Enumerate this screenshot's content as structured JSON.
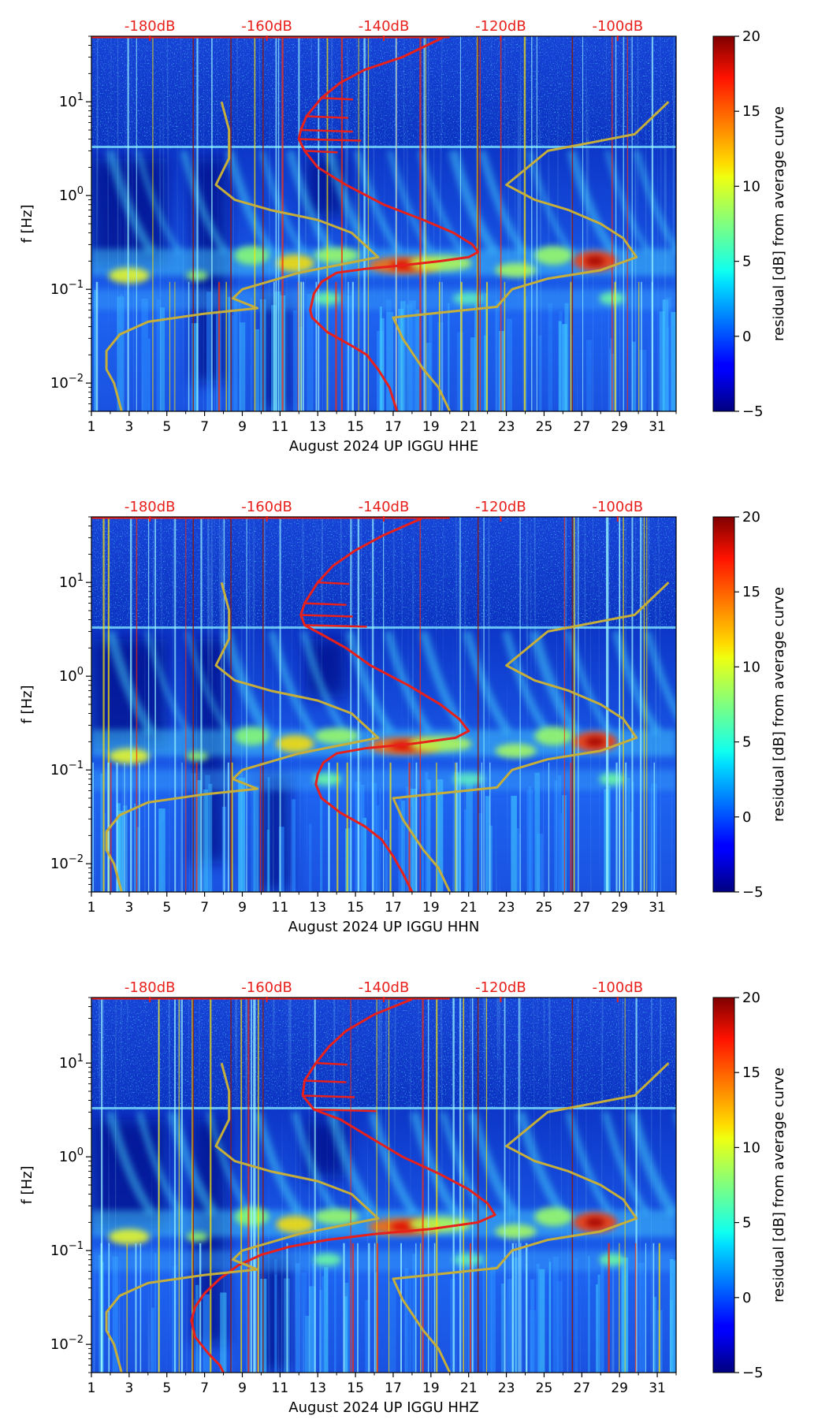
{
  "chart_data": [
    {
      "type": "heatmap",
      "xlabel": "August 2024 UP IGGU  HHE",
      "ylabel": "f [Hz]",
      "x_ticks": [
        "1",
        "3",
        "5",
        "7",
        "9",
        "11",
        "13",
        "15",
        "17",
        "19",
        "21",
        "23",
        "25",
        "27",
        "29",
        "31"
      ],
      "xlim": [
        1,
        32
      ],
      "y_ticks": [
        {
          "value": 10,
          "label": "10^1"
        },
        {
          "value": 1,
          "label": "10^0"
        },
        {
          "value": 0.1,
          "label": "10^-1"
        },
        {
          "value": 0.01,
          "label": "10^-2"
        }
      ],
      "ylim": [
        0.005,
        50
      ],
      "y_scale": "log",
      "top_ticks": [
        "-180dB",
        "-160dB",
        "-140dB",
        "-120dB",
        "-100dB"
      ],
      "top_axis_db_at_day": [
        [
          4.1,
          -180
        ],
        [
          10.3,
          -160
        ],
        [
          16.5,
          -140
        ],
        [
          22.7,
          -120
        ],
        [
          28.9,
          -100
        ]
      ],
      "colorbar": {
        "label": "residual [dB] from average curve",
        "min": -5,
        "max": 20,
        "ticks": [
          "20",
          "15",
          "10",
          "5",
          "0",
          "−5"
        ]
      },
      "series": [
        {
          "color": "#e8201c",
          "points": [
            [
              19.6,
              48
            ],
            [
              17.5,
              30
            ],
            [
              15.5,
              22
            ],
            [
              14.2,
              16
            ],
            [
              13.2,
              11
            ],
            [
              12.4,
              7
            ],
            [
              12.1,
              5
            ],
            [
              12.0,
              4
            ],
            [
              12.3,
              3
            ],
            [
              13.0,
              2
            ],
            [
              14.5,
              1.3
            ],
            [
              16.5,
              0.8
            ],
            [
              18.6,
              0.55
            ],
            [
              20.2,
              0.4
            ],
            [
              21.2,
              0.3
            ],
            [
              21.5,
              0.25
            ],
            [
              21.0,
              0.22
            ],
            [
              19.5,
              0.2
            ],
            [
              17.5,
              0.18
            ],
            [
              15.5,
              0.165
            ],
            [
              14.0,
              0.15
            ],
            [
              13.2,
              0.12
            ],
            [
              12.8,
              0.09
            ],
            [
              12.6,
              0.06
            ],
            [
              12.7,
              0.05
            ],
            [
              13.5,
              0.035
            ],
            [
              14.8,
              0.025
            ],
            [
              15.6,
              0.02
            ],
            [
              16.2,
              0.014
            ],
            [
              16.8,
              0.009
            ],
            [
              17.2,
              0.005
            ]
          ]
        },
        {
          "color": "#c6ae3a",
          "points": [
            [
              7.9,
              10
            ],
            [
              8.3,
              5
            ],
            [
              8.3,
              2.5
            ],
            [
              7.6,
              1.3
            ],
            [
              8.6,
              0.9
            ],
            [
              10.5,
              0.7
            ],
            [
              13.0,
              0.55
            ],
            [
              14.8,
              0.4
            ],
            [
              16.2,
              0.22
            ],
            [
              12.0,
              0.15
            ],
            [
              9.0,
              0.1
            ],
            [
              8.5,
              0.08
            ],
            [
              9.8,
              0.063
            ],
            [
              7.0,
              0.055
            ],
            [
              4.0,
              0.045
            ],
            [
              2.5,
              0.033
            ],
            [
              1.8,
              0.022
            ],
            [
              1.8,
              0.014
            ],
            [
              2.2,
              0.01
            ],
            [
              2.6,
              0.005
            ]
          ]
        },
        {
          "color": "#c6ae3a",
          "points": [
            [
              31.6,
              10
            ],
            [
              29.8,
              4.5
            ],
            [
              25.2,
              3
            ],
            [
              23.0,
              1.3
            ],
            [
              24.5,
              0.9
            ],
            [
              26.3,
              0.7
            ],
            [
              28.0,
              0.5
            ],
            [
              29.2,
              0.35
            ],
            [
              29.9,
              0.22
            ],
            [
              28.0,
              0.16
            ],
            [
              25.2,
              0.13
            ],
            [
              23.3,
              0.1
            ],
            [
              22.5,
              0.065
            ],
            [
              17.0,
              0.05
            ],
            [
              17.5,
              0.03
            ],
            [
              18.6,
              0.014
            ],
            [
              19.4,
              0.009
            ],
            [
              20.0,
              0.005
            ]
          ]
        }
      ]
    },
    {
      "type": "heatmap",
      "xlabel": "August 2024 UP IGGU  HHN",
      "ylabel": "f [Hz]",
      "x_ticks": [
        "1",
        "3",
        "5",
        "7",
        "9",
        "11",
        "13",
        "15",
        "17",
        "19",
        "21",
        "23",
        "25",
        "27",
        "29",
        "31"
      ],
      "xlim": [
        1,
        32
      ],
      "y_ticks": [
        {
          "value": 10,
          "label": "10^1"
        },
        {
          "value": 1,
          "label": "10^0"
        },
        {
          "value": 0.1,
          "label": "10^-1"
        },
        {
          "value": 0.01,
          "label": "10^-2"
        }
      ],
      "ylim": [
        0.005,
        50
      ],
      "y_scale": "log",
      "top_ticks": [
        "-180dB",
        "-160dB",
        "-140dB",
        "-120dB",
        "-100dB"
      ],
      "top_axis_db_at_day": [
        [
          4.1,
          -180
        ],
        [
          10.3,
          -160
        ],
        [
          16.5,
          -140
        ],
        [
          22.7,
          -120
        ],
        [
          28.9,
          -100
        ]
      ],
      "colorbar": {
        "label": "residual [dB] from average curve",
        "min": -5,
        "max": 20,
        "ticks": [
          "20",
          "15",
          "10",
          "5",
          "0",
          "−5"
        ]
      },
      "series": [
        {
          "color": "#e8201c",
          "points": [
            [
              18.5,
              48
            ],
            [
              16.5,
              32
            ],
            [
              15.0,
              22
            ],
            [
              13.8,
              15
            ],
            [
              13.0,
              10
            ],
            [
              12.3,
              6
            ],
            [
              12.1,
              4.5
            ],
            [
              12.3,
              3.5
            ],
            [
              13.2,
              2.8
            ],
            [
              14.5,
              2
            ],
            [
              15.8,
              1.3
            ],
            [
              17.8,
              0.8
            ],
            [
              19.5,
              0.5
            ],
            [
              20.5,
              0.35
            ],
            [
              21.0,
              0.26
            ],
            [
              20.3,
              0.22
            ],
            [
              18.0,
              0.19
            ],
            [
              15.5,
              0.17
            ],
            [
              14.0,
              0.15
            ],
            [
              13.3,
              0.12
            ],
            [
              13.0,
              0.09
            ],
            [
              12.9,
              0.07
            ],
            [
              13.2,
              0.05
            ],
            [
              14.2,
              0.035
            ],
            [
              15.5,
              0.025
            ],
            [
              16.4,
              0.018
            ],
            [
              17.0,
              0.012
            ],
            [
              17.5,
              0.008
            ],
            [
              18.0,
              0.005
            ]
          ]
        },
        {
          "color": "#c6ae3a",
          "points": [
            [
              7.9,
              10
            ],
            [
              8.3,
              5
            ],
            [
              8.3,
              2.5
            ],
            [
              7.6,
              1.3
            ],
            [
              8.6,
              0.9
            ],
            [
              10.5,
              0.7
            ],
            [
              13.0,
              0.55
            ],
            [
              14.8,
              0.4
            ],
            [
              16.2,
              0.22
            ],
            [
              12.0,
              0.15
            ],
            [
              9.0,
              0.1
            ],
            [
              8.5,
              0.08
            ],
            [
              9.8,
              0.063
            ],
            [
              7.0,
              0.055
            ],
            [
              4.0,
              0.045
            ],
            [
              2.5,
              0.033
            ],
            [
              1.8,
              0.022
            ],
            [
              1.8,
              0.014
            ],
            [
              2.2,
              0.01
            ],
            [
              2.6,
              0.005
            ]
          ]
        },
        {
          "color": "#c6ae3a",
          "points": [
            [
              31.6,
              10
            ],
            [
              29.8,
              4.5
            ],
            [
              25.2,
              3
            ],
            [
              23.0,
              1.3
            ],
            [
              24.5,
              0.9
            ],
            [
              26.3,
              0.7
            ],
            [
              28.0,
              0.5
            ],
            [
              29.2,
              0.35
            ],
            [
              29.9,
              0.22
            ],
            [
              28.0,
              0.16
            ],
            [
              25.2,
              0.13
            ],
            [
              23.3,
              0.1
            ],
            [
              22.5,
              0.065
            ],
            [
              17.0,
              0.05
            ],
            [
              17.5,
              0.03
            ],
            [
              18.6,
              0.014
            ],
            [
              19.4,
              0.009
            ],
            [
              20.0,
              0.005
            ]
          ]
        }
      ]
    },
    {
      "type": "heatmap",
      "xlabel": "August 2024 UP IGGU  HHZ",
      "ylabel": "f [Hz]",
      "x_ticks": [
        "1",
        "3",
        "5",
        "7",
        "9",
        "11",
        "13",
        "15",
        "17",
        "19",
        "21",
        "23",
        "25",
        "27",
        "29",
        "31"
      ],
      "xlim": [
        1,
        32
      ],
      "y_ticks": [
        {
          "value": 10,
          "label": "10^1"
        },
        {
          "value": 1,
          "label": "10^0"
        },
        {
          "value": 0.1,
          "label": "10^-1"
        },
        {
          "value": 0.01,
          "label": "10^-2"
        }
      ],
      "ylim": [
        0.005,
        50
      ],
      "y_scale": "log",
      "top_ticks": [
        "-180dB",
        "-160dB",
        "-140dB",
        "-120dB",
        "-100dB"
      ],
      "top_axis_db_at_day": [
        [
          4.1,
          -180
        ],
        [
          10.3,
          -160
        ],
        [
          16.5,
          -140
        ],
        [
          22.7,
          -120
        ],
        [
          28.9,
          -100
        ]
      ],
      "colorbar": {
        "label": "residual [dB] from average curve",
        "min": -5,
        "max": 20,
        "ticks": [
          "20",
          "15",
          "10",
          "5",
          "0",
          "−5"
        ]
      },
      "series": [
        {
          "color": "#e8201c",
          "points": [
            [
              18.0,
              48
            ],
            [
              16.0,
              33
            ],
            [
              14.5,
              22
            ],
            [
              13.6,
              15
            ],
            [
              12.9,
              10
            ],
            [
              12.3,
              6.5
            ],
            [
              12.2,
              4.5
            ],
            [
              12.8,
              3.2
            ],
            [
              14.2,
              2.5
            ],
            [
              15.8,
              1.6
            ],
            [
              17.5,
              1.0
            ],
            [
              19.5,
              0.65
            ],
            [
              21.0,
              0.45
            ],
            [
              22.0,
              0.32
            ],
            [
              22.4,
              0.24
            ],
            [
              21.5,
              0.2
            ],
            [
              19.0,
              0.17
            ],
            [
              16.0,
              0.15
            ],
            [
              13.5,
              0.13
            ],
            [
              11.5,
              0.11
            ],
            [
              10.0,
              0.09
            ],
            [
              8.8,
              0.07
            ],
            [
              7.8,
              0.05
            ],
            [
              7.0,
              0.035
            ],
            [
              6.5,
              0.025
            ],
            [
              6.3,
              0.018
            ],
            [
              6.5,
              0.012
            ],
            [
              7.2,
              0.008
            ],
            [
              7.8,
              0.006
            ],
            [
              8.0,
              0.005
            ]
          ]
        },
        {
          "color": "#c6ae3a",
          "points": [
            [
              7.9,
              10
            ],
            [
              8.3,
              5
            ],
            [
              8.3,
              2.5
            ],
            [
              7.6,
              1.3
            ],
            [
              8.6,
              0.9
            ],
            [
              10.5,
              0.7
            ],
            [
              13.0,
              0.55
            ],
            [
              14.8,
              0.4
            ],
            [
              16.2,
              0.22
            ],
            [
              12.0,
              0.15
            ],
            [
              9.0,
              0.1
            ],
            [
              8.5,
              0.08
            ],
            [
              9.8,
              0.063
            ],
            [
              7.0,
              0.055
            ],
            [
              4.0,
              0.045
            ],
            [
              2.5,
              0.033
            ],
            [
              1.8,
              0.022
            ],
            [
              1.8,
              0.014
            ],
            [
              2.2,
              0.01
            ],
            [
              2.6,
              0.005
            ]
          ]
        },
        {
          "color": "#c6ae3a",
          "points": [
            [
              31.6,
              10
            ],
            [
              29.8,
              4.5
            ],
            [
              25.2,
              3
            ],
            [
              23.0,
              1.3
            ],
            [
              24.5,
              0.9
            ],
            [
              26.3,
              0.7
            ],
            [
              28.0,
              0.5
            ],
            [
              29.2,
              0.35
            ],
            [
              29.9,
              0.22
            ],
            [
              28.0,
              0.16
            ],
            [
              25.2,
              0.13
            ],
            [
              23.3,
              0.1
            ],
            [
              22.5,
              0.065
            ],
            [
              17.0,
              0.05
            ],
            [
              17.5,
              0.03
            ],
            [
              18.6,
              0.014
            ],
            [
              19.4,
              0.009
            ],
            [
              20.0,
              0.005
            ]
          ]
        }
      ]
    }
  ]
}
